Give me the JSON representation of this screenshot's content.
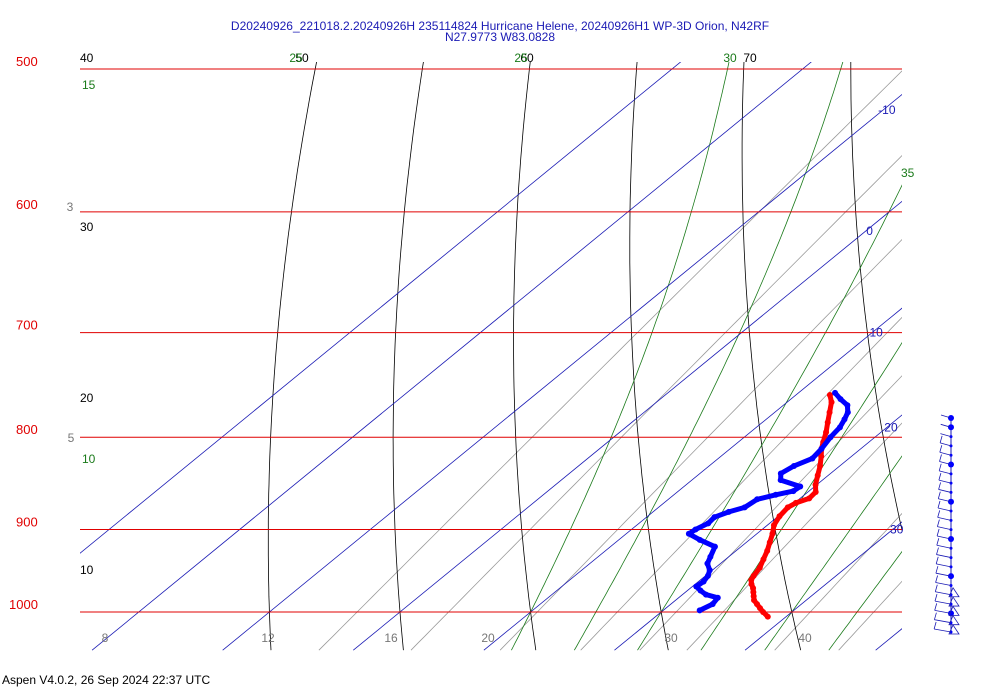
{
  "header": {
    "title_line1": "D20240926_221018.2.20240926H 235114824 Hurricane Helene, 20240926H1 WP-3D Orion, N42RF",
    "title_line2": "N27.9773 W83.0828"
  },
  "footer": {
    "text": "Aspen V4.0.2, 26 Sep 2024  22:37 UTC"
  },
  "colors": {
    "isobar": "#e00000",
    "isotherm": "#1a1ab4",
    "dry_adiabat": "#000000",
    "moist_adiabat": "#1a7a1a",
    "mixing_ratio": "#9a9a9a",
    "temperature_trace": "#ff0000",
    "dewpoint_trace": "#0000ff"
  },
  "chart_data": {
    "type": "skew-t",
    "y_axis": {
      "scale": "log",
      "unit": "hPa",
      "range": [
        1040,
        500
      ],
      "tick_labels": [
        "500",
        "600",
        "700",
        "800",
        "900",
        "1000"
      ]
    },
    "isobars_hpa": [
      500,
      600,
      700,
      800,
      900,
      1000
    ],
    "isotherms_c": [
      -30,
      -20,
      -10,
      0,
      10,
      20,
      30,
      40
    ],
    "isotherm_labels": [
      {
        "text": "-10",
        "value": -10,
        "p": 527
      },
      {
        "text": "0",
        "value": 0,
        "p": 615
      },
      {
        "text": "10",
        "value": 10,
        "p": 700
      },
      {
        "text": "20",
        "value": 20,
        "p": 790
      },
      {
        "text": "30",
        "value": 30,
        "p": 900
      }
    ],
    "dry_adiabats_c": [
      -10,
      0,
      10,
      20,
      30,
      40,
      50,
      60,
      70
    ],
    "dry_adiabat_labels": [
      "40",
      "30",
      "20",
      "10",
      "50",
      "60",
      "70"
    ],
    "moist_adiabats_c": [
      10,
      15,
      20,
      25,
      30,
      35
    ],
    "moist_adiabat_labels": [
      "15",
      "10",
      "25",
      "25",
      "30",
      "35"
    ],
    "mixing_ratios_gkg": [
      3,
      5,
      8,
      12,
      16,
      20,
      30,
      40
    ],
    "mixing_ratio_labels": [
      "3",
      "5",
      "8",
      "12",
      "16",
      "20",
      "30",
      "40"
    ],
    "series": [
      {
        "values": [
          {
            "p": 1006,
            "t": 28.6
          },
          {
            "p": 1000,
            "t": 27.8
          },
          {
            "p": 995,
            "t": 27.2
          },
          {
            "p": 990,
            "t": 26.6
          },
          {
            "p": 985,
            "t": 26.0
          },
          {
            "p": 980,
            "t": 25.6
          },
          {
            "p": 975,
            "t": 25.2
          },
          {
            "p": 970,
            "t": 24.8
          },
          {
            "p": 965,
            "t": 24.3
          },
          {
            "p": 960,
            "t": 23.9
          },
          {
            "p": 955,
            "t": 23.7
          },
          {
            "p": 945,
            "t": 23.4
          },
          {
            "p": 935,
            "t": 22.9
          },
          {
            "p": 925,
            "t": 22.4
          },
          {
            "p": 915,
            "t": 21.8
          },
          {
            "p": 905,
            "t": 21.2
          },
          {
            "p": 895,
            "t": 20.5
          },
          {
            "p": 885,
            "t": 20.1
          },
          {
            "p": 875,
            "t": 19.9
          },
          {
            "p": 870,
            "t": 20.1
          },
          {
            "p": 865,
            "t": 20.7
          },
          {
            "p": 858,
            "t": 20.6
          },
          {
            "p": 850,
            "t": 19.9
          },
          {
            "p": 840,
            "t": 19.2
          },
          {
            "p": 830,
            "t": 18.5
          },
          {
            "p": 820,
            "t": 17.7
          },
          {
            "p": 812,
            "t": 17.0
          },
          {
            "p": 805,
            "t": 16.5
          },
          {
            "p": 795,
            "t": 15.8
          },
          {
            "p": 785,
            "t": 15.0
          },
          {
            "p": 775,
            "t": 14.2
          },
          {
            "p": 765,
            "t": 13.4
          },
          {
            "p": 758,
            "t": 12.6
          }
        ]
      },
      {
        "values": [
          {
            "p": 998,
            "td": 22.8
          },
          {
            "p": 990,
            "td": 23.2
          },
          {
            "p": 982,
            "td": 23.0
          },
          {
            "p": 978,
            "td": 21.8
          },
          {
            "p": 973,
            "td": 21.0
          },
          {
            "p": 968,
            "td": 20.3
          },
          {
            "p": 962,
            "td": 20.4
          },
          {
            "p": 955,
            "td": 20.2
          },
          {
            "p": 948,
            "td": 19.8
          },
          {
            "p": 940,
            "td": 19.0
          },
          {
            "p": 932,
            "td": 18.6
          },
          {
            "p": 920,
            "td": 18.0
          },
          {
            "p": 912,
            "td": 16.2
          },
          {
            "p": 905,
            "td": 14.8
          },
          {
            "p": 900,
            "td": 14.9
          },
          {
            "p": 893,
            "td": 15.3
          },
          {
            "p": 886,
            "td": 15.2
          },
          {
            "p": 880,
            "td": 15.8
          },
          {
            "p": 875,
            "td": 16.6
          },
          {
            "p": 866,
            "td": 16.8
          },
          {
            "p": 861,
            "td": 17.8
          },
          {
            "p": 857,
            "td": 18.8
          },
          {
            "p": 852,
            "td": 18.9
          },
          {
            "p": 845,
            "td": 16.8
          },
          {
            "p": 838,
            "td": 16.2
          },
          {
            "p": 830,
            "td": 16.5
          },
          {
            "p": 822,
            "td": 17.2
          },
          {
            "p": 812,
            "td": 17.0
          },
          {
            "p": 800,
            "td": 16.6
          },
          {
            "p": 790,
            "td": 16.4
          },
          {
            "p": 782,
            "td": 16.0
          },
          {
            "p": 775,
            "td": 15.6
          },
          {
            "p": 768,
            "td": 14.9
          },
          {
            "p": 762,
            "td": 13.8
          },
          {
            "p": 756,
            "td": 12.8
          }
        ]
      }
    ],
    "wind_profile": {
      "points": 24,
      "pressure_range_hpa": [
        760,
        1006
      ]
    },
    "bottom_labels": [
      {
        "text": "8",
        "color": "mix"
      },
      {
        "text": "12",
        "color": "mix"
      },
      {
        "text": "16",
        "color": "mix"
      },
      {
        "text": "20",
        "color": "mix"
      },
      {
        "text": "30",
        "color": "mix"
      },
      {
        "text": "40",
        "color": "mix"
      }
    ]
  }
}
